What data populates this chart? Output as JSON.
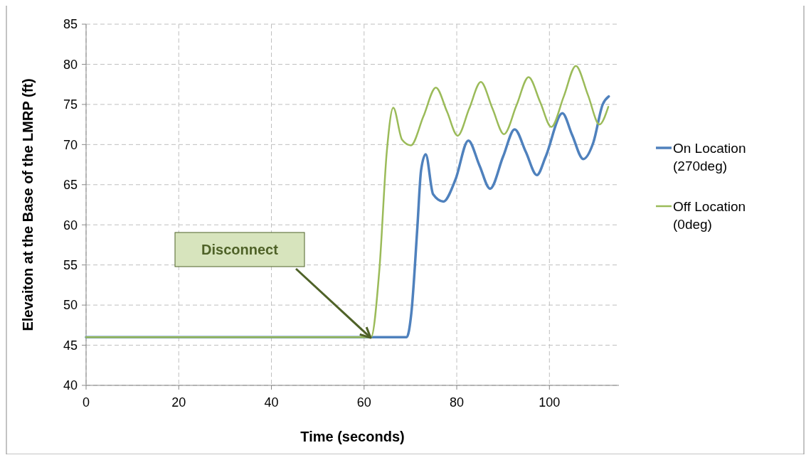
{
  "chart_data": {
    "type": "line",
    "xlabel": "Time (seconds)",
    "ylabel": "Elevaiton at the Base of the LMRP (ft)",
    "xlim": [
      0,
      115
    ],
    "xticks": [
      0,
      20,
      40,
      60,
      80,
      100
    ],
    "ylim": [
      40,
      85
    ],
    "yticks": [
      40,
      45,
      50,
      55,
      60,
      65,
      70,
      75,
      80,
      85
    ],
    "grid": true,
    "legend": "right",
    "marker": "none",
    "line_style": "solid",
    "annotations": [
      "Disconnect"
    ],
    "series": [
      {
        "name": "On Location (270deg)",
        "color": "#4f81bd",
        "x": [
          0,
          61.5,
          69.2,
          70.2,
          71.5,
          72.3,
          73.3,
          74.9,
          77.1,
          79.7,
          82.5,
          84.9,
          87.2,
          90.0,
          92.5,
          94.9,
          97.3,
          99.2,
          102.8,
          104.9,
          107.3,
          109.5,
          111.5,
          112.8
        ],
        "values": [
          46,
          46,
          46,
          49.0,
          59.7,
          66.8,
          68.8,
          63.8,
          62.9,
          65.6,
          70.5,
          67.4,
          64.5,
          68.5,
          71.9,
          69.1,
          66.2,
          68.5,
          73.9,
          71.2,
          68.2,
          70.3,
          75.0,
          76.0
        ]
      },
      {
        "name": "Off Location (0deg)",
        "color": "#9bbb59",
        "x": [
          0,
          61.5,
          63.3,
          64.9,
          66.3,
          68.2,
          70.1,
          72.8,
          75.5,
          77.9,
          80.2,
          82.7,
          85.2,
          87.7,
          90.2,
          92.9,
          95.5,
          98.0,
          100.4,
          103.1,
          105.7,
          108.3,
          110.8,
          112.7
        ],
        "values": [
          46,
          46,
          54.4,
          69.1,
          74.6,
          70.6,
          69.9,
          73.5,
          77.1,
          74.1,
          71.1,
          74.5,
          77.8,
          74.5,
          71.3,
          74.9,
          78.4,
          75.3,
          72.2,
          76.0,
          79.8,
          76.2,
          72.5,
          74.7
        ]
      }
    ]
  }
}
